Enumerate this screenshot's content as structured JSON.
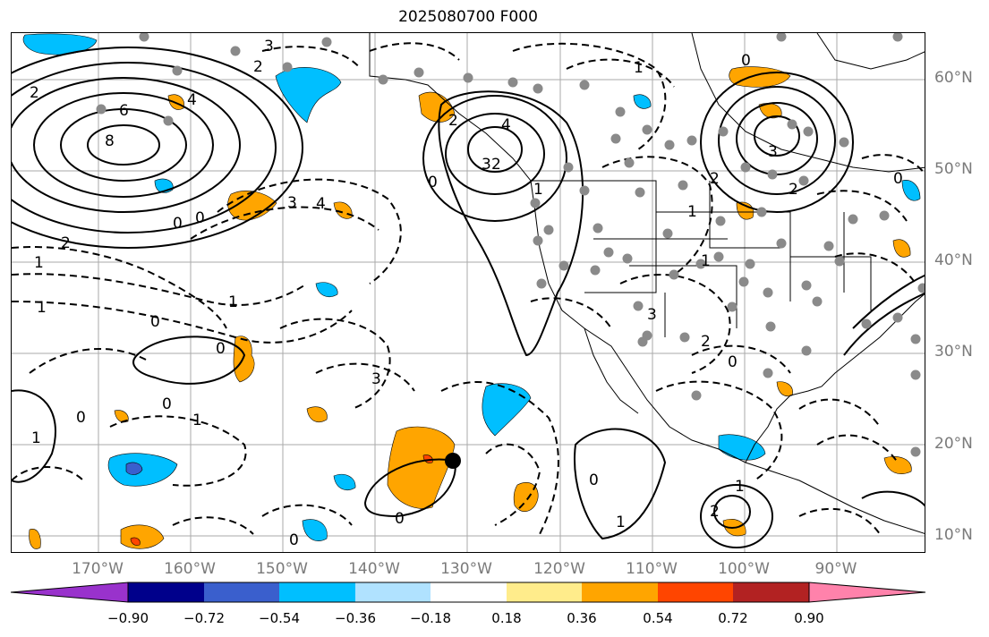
{
  "title": "2025080700 F000",
  "lat_labels": [
    "60°N",
    "50°N",
    "40°N",
    "30°N",
    "20°N",
    "10°N"
  ],
  "lon_labels": [
    "170°W",
    "160°W",
    "150°W",
    "140°W",
    "130°W",
    "120°W",
    "110°W",
    "100°W",
    "90°W"
  ],
  "colorbar": {
    "ticks": [
      "−0.90",
      "−0.72",
      "−0.54",
      "−0.36",
      "−0.18",
      "0.18",
      "0.36",
      "0.54",
      "0.72",
      "0.90"
    ],
    "colors": [
      "#9932cc",
      "#00008b",
      "#3a5fcd",
      "#00bfff",
      "#b0e2ff",
      "#ffffff",
      "#ffec8b",
      "#ffa500",
      "#ff4500",
      "#b22222",
      "#ff82ab"
    ]
  },
  "contour_labels": [
    "3",
    "2",
    "6",
    "8",
    "4",
    "2",
    "3",
    "4",
    "0",
    "0",
    "2",
    "1",
    "1",
    "0",
    "0",
    "0",
    "1",
    "0",
    "1",
    "0",
    "1",
    "0",
    "3",
    "0",
    "2",
    "3",
    "4",
    "2",
    "1",
    "2",
    "0",
    "1",
    "1",
    "3",
    "2",
    "1",
    "0",
    "2",
    "0",
    "1",
    "2",
    "0",
    "1",
    "3"
  ]
}
